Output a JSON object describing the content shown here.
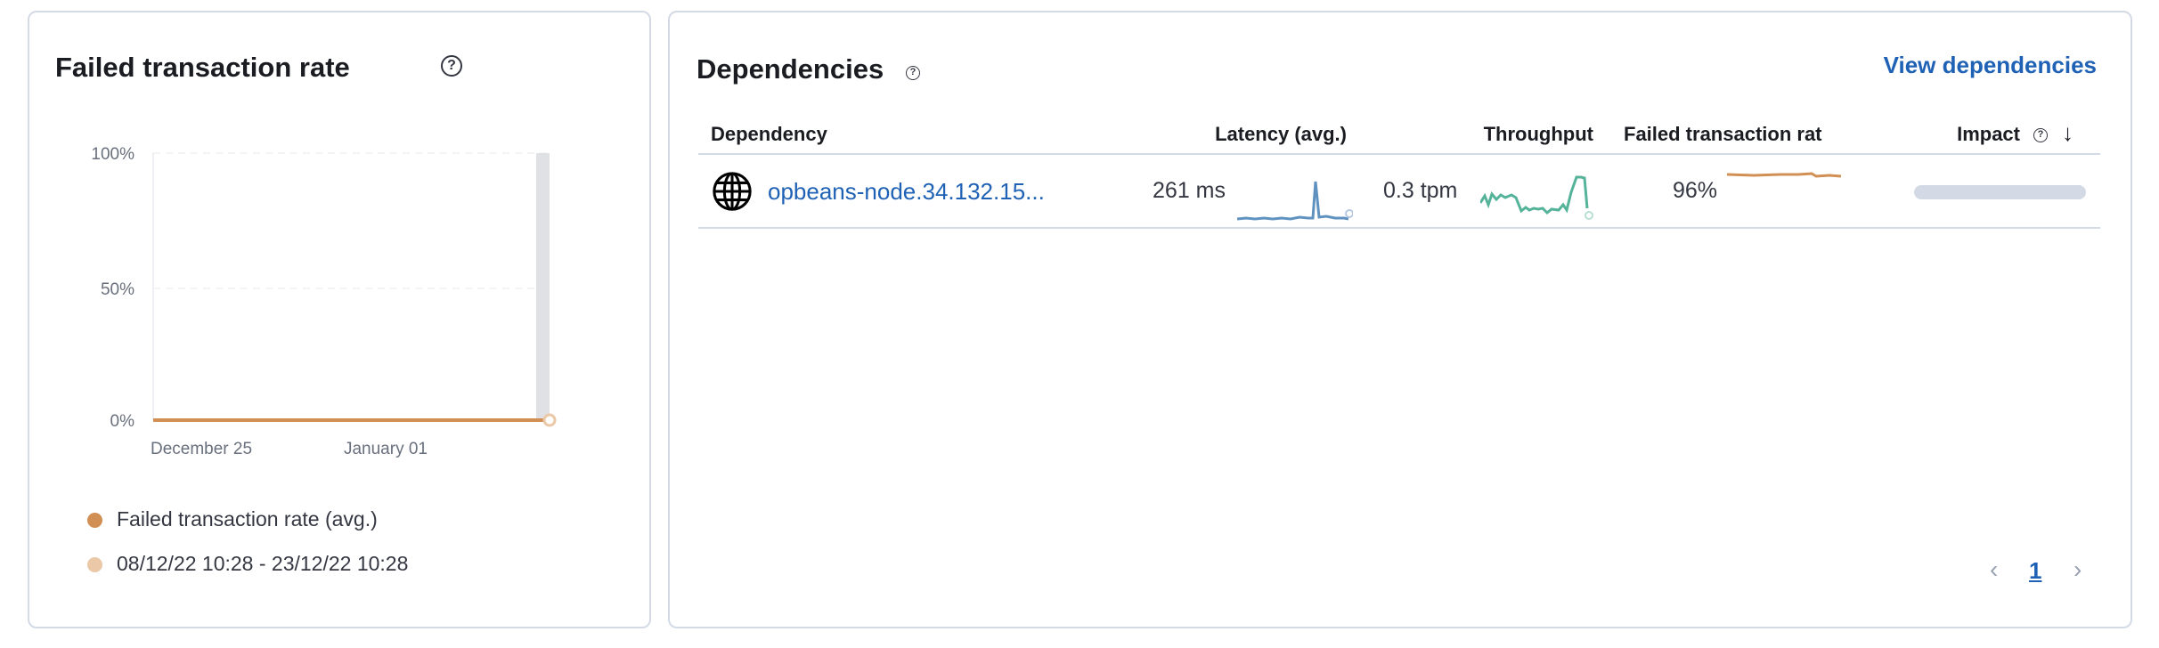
{
  "failed_panel": {
    "title": "Failed transaction rate",
    "help_icon": "question-circle-icon",
    "legend": [
      {
        "label": "Failed transaction rate (avg.)",
        "color": "#d28f54"
      },
      {
        "label": "08/12/22 10:28 - 23/12/22 10:28",
        "color": "#ebc8a7"
      }
    ]
  },
  "chart_data": {
    "type": "line",
    "y_ticks": [
      "100%",
      "50%",
      "0%"
    ],
    "x_ticks": [
      "December 25",
      "January 01"
    ],
    "ylim": [
      0,
      100
    ],
    "grid": true,
    "legend_position": "bottom",
    "series": [
      {
        "name": "Failed transaction rate (avg.)",
        "color": "#d28f54",
        "values": [
          0,
          0
        ]
      },
      {
        "name": "08/12/22 10:28 - 23/12/22 10:28",
        "color": "#ebc8a7",
        "values": [
          0
        ]
      }
    ]
  },
  "dependencies": {
    "title": "Dependencies",
    "view_link": "View dependencies",
    "columns": [
      "Dependency",
      "Latency (avg.)",
      "Throughput",
      "Failed transaction rat",
      "Impact"
    ],
    "sort_icon": "arrow-down-icon",
    "rows": [
      {
        "icon": "globe-icon",
        "name": "opbeans-node.34.132.15...",
        "latency": "261 ms",
        "throughput": "0.3 tpm",
        "failed_rate": "96%",
        "impact": 1.0,
        "latency_color": "#6092c0",
        "throughput_color": "#54b399",
        "failed_color": "#d28f54"
      }
    ],
    "pagination": {
      "current": "1"
    }
  }
}
